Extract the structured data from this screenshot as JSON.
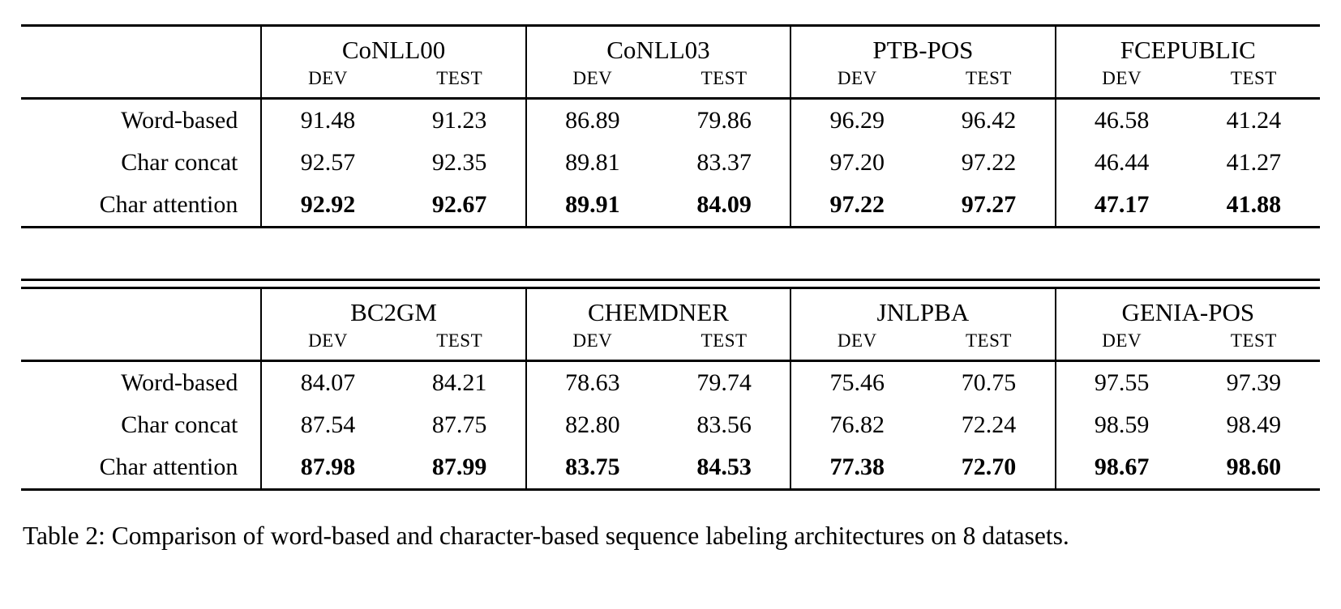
{
  "page": {
    "background": "#ffffff",
    "text_color": "#000000",
    "rule_color": "#000000"
  },
  "caption": "Table 2: Comparison of word-based and character-based sequence labeling architectures on 8 datasets.",
  "tables": [
    {
      "groups": [
        {
          "name": "CoNLL00",
          "subcols": [
            "DEV",
            "TEST"
          ]
        },
        {
          "name": "CoNLL03",
          "subcols": [
            "DEV",
            "TEST"
          ]
        },
        {
          "name": "PTB-POS",
          "subcols": [
            "DEV",
            "TEST"
          ]
        },
        {
          "name": "FCEPUBLIC",
          "subcols": [
            "DEV",
            "TEST"
          ]
        }
      ],
      "rows": [
        {
          "label": "Word-based",
          "bold": false,
          "values": [
            "91.48",
            "91.23",
            "86.89",
            "79.86",
            "96.29",
            "96.42",
            "46.58",
            "41.24"
          ]
        },
        {
          "label": "Char concat",
          "bold": false,
          "values": [
            "92.57",
            "92.35",
            "89.81",
            "83.37",
            "97.20",
            "97.22",
            "46.44",
            "41.27"
          ]
        },
        {
          "label": "Char attention",
          "bold": true,
          "values": [
            "92.92",
            "92.67",
            "89.91",
            "84.09",
            "97.22",
            "97.27",
            "47.17",
            "41.88"
          ]
        }
      ]
    },
    {
      "groups": [
        {
          "name": "BC2GM",
          "subcols": [
            "DEV",
            "TEST"
          ]
        },
        {
          "name": "CHEMDNER",
          "subcols": [
            "DEV",
            "TEST"
          ]
        },
        {
          "name": "JNLPBA",
          "subcols": [
            "DEV",
            "TEST"
          ]
        },
        {
          "name": "GENIA-POS",
          "subcols": [
            "DEV",
            "TEST"
          ]
        }
      ],
      "rows": [
        {
          "label": "Word-based",
          "bold": false,
          "values": [
            "84.07",
            "84.21",
            "78.63",
            "79.74",
            "75.46",
            "70.75",
            "97.55",
            "97.39"
          ]
        },
        {
          "label": "Char concat",
          "bold": false,
          "values": [
            "87.54",
            "87.75",
            "82.80",
            "83.56",
            "76.82",
            "72.24",
            "98.59",
            "98.49"
          ]
        },
        {
          "label": "Char attention",
          "bold": true,
          "values": [
            "87.98",
            "87.99",
            "83.75",
            "84.53",
            "77.38",
            "72.70",
            "98.67",
            "98.60"
          ]
        }
      ]
    }
  ],
  "chart_data": [
    {
      "type": "table",
      "title": "Comparison of word-based and character-based sequence labeling architectures (top half)",
      "column_groups": [
        "CoNLL00",
        "CoNLL03",
        "PTB-POS",
        "FCEPUBLIC"
      ],
      "sub_columns": [
        "DEV",
        "TEST"
      ],
      "row_labels": [
        "Word-based",
        "Char concat",
        "Char attention"
      ],
      "values": [
        [
          91.48,
          91.23,
          86.89,
          79.86,
          96.29,
          96.42,
          46.58,
          41.24
        ],
        [
          92.57,
          92.35,
          89.81,
          83.37,
          97.2,
          97.22,
          46.44,
          41.27
        ],
        [
          92.92,
          92.67,
          89.91,
          84.09,
          97.22,
          97.27,
          47.17,
          41.88
        ]
      ],
      "bold_rows": [
        "Char attention"
      ]
    },
    {
      "type": "table",
      "title": "Comparison of word-based and character-based sequence labeling architectures (bottom half)",
      "column_groups": [
        "BC2GM",
        "CHEMDNER",
        "JNLPBA",
        "GENIA-POS"
      ],
      "sub_columns": [
        "DEV",
        "TEST"
      ],
      "row_labels": [
        "Word-based",
        "Char concat",
        "Char attention"
      ],
      "values": [
        [
          84.07,
          84.21,
          78.63,
          79.74,
          75.46,
          70.75,
          97.55,
          97.39
        ],
        [
          87.54,
          87.75,
          82.8,
          83.56,
          76.82,
          72.24,
          98.59,
          98.49
        ],
        [
          87.98,
          87.99,
          83.75,
          84.53,
          77.38,
          72.7,
          98.67,
          98.6
        ]
      ],
      "bold_rows": [
        "Char attention"
      ]
    }
  ]
}
